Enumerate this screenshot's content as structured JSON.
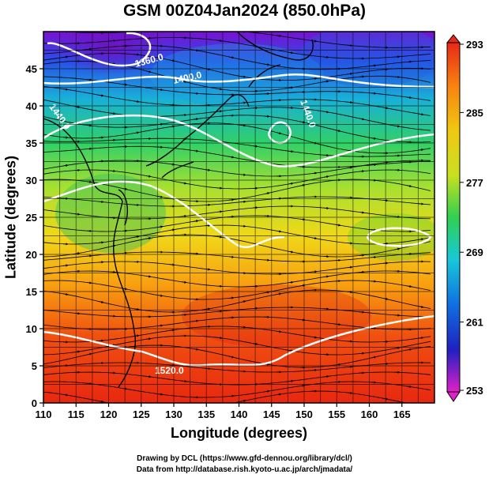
{
  "title": "GSM 00Z04Jan2024 (850.0hPa)",
  "credit_line1": "Drawing by DCL (https://www.gfd-dennou.org/library/dcl/)",
  "credit_line2": "Data from http://database.rish.kyoto-u.ac.jp/arch/jmadata/",
  "chart_data": {
    "type": "heatmap",
    "title": "GSM 00Z04Jan2024 (850.0hPa)",
    "xlabel": "Longitude (degrees)",
    "ylabel": "Latitude  (degrees)",
    "xlim": [
      110,
      170
    ],
    "ylim": [
      0,
      50
    ],
    "xticks": [
      110,
      115,
      120,
      125,
      130,
      135,
      140,
      145,
      150,
      155,
      160,
      165
    ],
    "yticks": [
      0,
      5,
      10,
      15,
      20,
      25,
      30,
      35,
      40,
      45
    ],
    "grid": true,
    "colorbar": {
      "min": 253,
      "max": 293,
      "ticks": [
        253,
        261,
        269,
        277,
        285,
        293
      ],
      "position": "right"
    },
    "contour_labels": [
      "1360.0",
      "1400.0",
      "1440.0",
      "1440.0",
      "1520.0"
    ],
    "colors": {
      "cold": "#8a00c8",
      "cool": "#1060e8",
      "mid": "#38d060",
      "warm": "#f0d010",
      "hot": "#e82810",
      "contour": "#ffffff",
      "streamline": "#000000"
    }
  }
}
